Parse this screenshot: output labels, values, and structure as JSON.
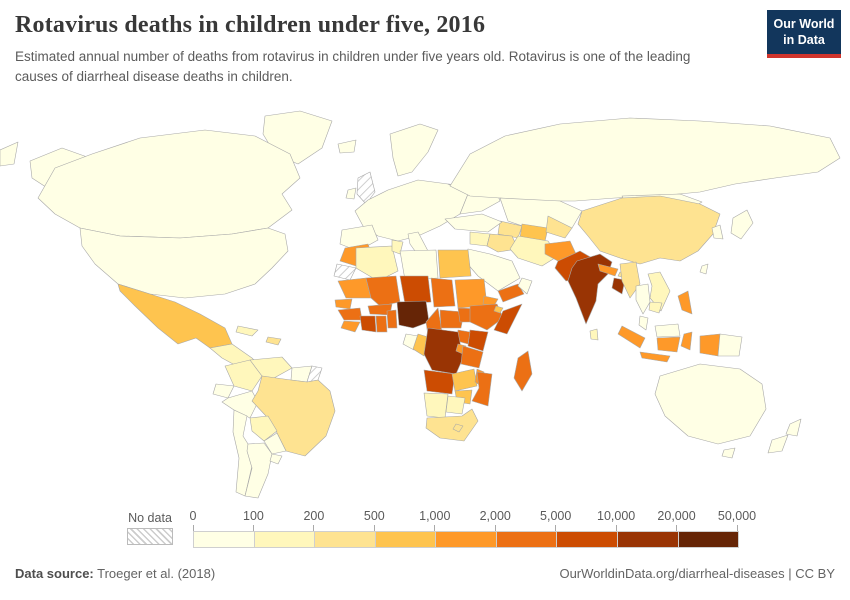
{
  "header": {
    "title": "Rotavirus deaths in children under five, 2016",
    "subtitle": "Estimated annual number of deaths from rotavirus in children under five years old. Rotavirus is one of the leading causes of diarrheal disease deaths in children."
  },
  "logo": {
    "line1": "Our World",
    "line2": "in Data",
    "bg_color": "#12365c",
    "accent_color": "#d0342c"
  },
  "legend": {
    "no_data_label": "No data",
    "ticks": [
      "0",
      "100",
      "200",
      "500",
      "1,000",
      "2,000",
      "5,000",
      "10,000",
      "20,000",
      "50,000"
    ]
  },
  "footer": {
    "source_label": "Data source:",
    "source_value": "Troeger et al. (2018)",
    "right_text": "OurWorldinData.org/diarrheal-diseases | CC BY"
  },
  "chart_data": {
    "type": "choropleth",
    "title": "Rotavirus deaths in children under five, 2016",
    "year": 2016,
    "unit": "annual deaths from rotavirus, children under five",
    "legend_position": "bottom",
    "color_scale": {
      "thresholds": [
        0,
        100,
        200,
        500,
        1000,
        2000,
        5000,
        10000,
        20000,
        50000
      ],
      "colors": [
        "#ffffe5",
        "#fff7bc",
        "#fee391",
        "#fec44f",
        "#fe9929",
        "#ec7014",
        "#cc4c02",
        "#993404",
        "#662506"
      ],
      "no_data": "hatched"
    },
    "class_ranges": [
      "0–100",
      "100–200",
      "200–500",
      "500–1,000",
      "1,000–2,000",
      "2,000–5,000",
      "5,000–10,000",
      "10,000–20,000",
      "20,000–50,000"
    ],
    "regions": {
      "greenland": 0,
      "canada": 0,
      "alaska": 0,
      "usa": 0,
      "mexico": 3,
      "central-america": 1,
      "cuba": 1,
      "hispaniola": 2,
      "colombia": 1,
      "venezuela": 1,
      "guyana-suriname": 0,
      "french-guiana": "nd",
      "ecuador": 0,
      "peru": 0,
      "brazil": 2,
      "bolivia": 1,
      "paraguay": 0,
      "chile": 0,
      "argentina": 0,
      "uruguay": 0,
      "iceland": 0,
      "uk": "nd",
      "ireland": 0,
      "scandinavia": 0,
      "europe-main": 0,
      "iberia": 0,
      "italy": 0,
      "east-europe": 0,
      "russia": 0,
      "chukotka": 0,
      "kazakhstan": 0,
      "mongolia": 0,
      "turkmenistan": 2,
      "uzbekistan": 3,
      "kyrgyz-tajik": 2,
      "turkey": 0,
      "syria-levant": 1,
      "iraq": 2,
      "iran": 1,
      "saudi-arabia": 0,
      "yemen": 5,
      "oman": 0,
      "morocco": 4,
      "western-sahara": "nd",
      "algeria": 1,
      "tunisia": 1,
      "libya": 0,
      "egypt": 3,
      "mauritania": 4,
      "mali": 5,
      "niger": 6,
      "chad": 5,
      "sudan": 4,
      "eritrea": 4,
      "djibouti": 3,
      "senegal": 4,
      "guinea": 5,
      "sierra-leone-liberia": 4,
      "cote-divoire": 6,
      "ghana": 5,
      "burkina-faso": 5,
      "togo-benin": 5,
      "nigeria": 8,
      "cameroon": 5,
      "central-african-republic": 5,
      "south-sudan": 5,
      "ethiopia": 5,
      "somalia": 6,
      "kenya": 6,
      "uganda": 5,
      "gabon": 0,
      "congo": 3,
      "drc": 7,
      "rwanda-burundi": 4,
      "tanzania": 5,
      "angola": 6,
      "zambia": 3,
      "malawi": 4,
      "mozambique": 5,
      "zimbabwe": 3,
      "namibia": 1,
      "botswana": 1,
      "south-africa": 2,
      "lesotho": 2,
      "madagascar": 5,
      "afghanistan": 4,
      "pakistan": 6,
      "india": 7,
      "nepal": 4,
      "bhutan": 2,
      "bangladesh": 7,
      "sri-lanka": 1,
      "china": 2,
      "myanmar": 2,
      "thailand": 0,
      "laos-vietnam": 1,
      "cambodia": 1,
      "malaysia-peninsula": 0,
      "sumatra": 4,
      "java": 4,
      "borneo-malaysia": 0,
      "kalimantan": 4,
      "sulawesi": 4,
      "papua-indonesia": 4,
      "papua-new-guinea": 0,
      "philippines": 4,
      "taiwan": 0,
      "korea": 0,
      "japan": 0,
      "australia": 0,
      "tasmania": 0,
      "new-zealand-north": 0,
      "new-zealand-south": 0
    }
  }
}
